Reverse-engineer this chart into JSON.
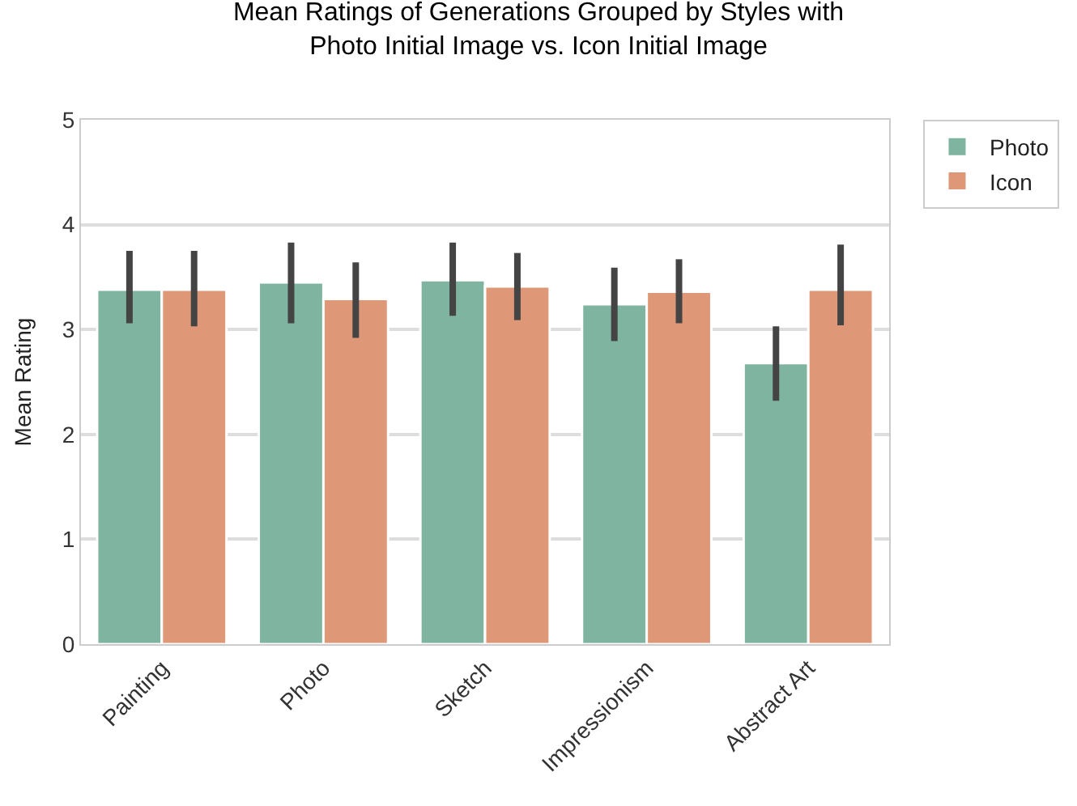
{
  "chart_data": {
    "type": "bar",
    "title": "Mean Ratings of Generations Grouped by Styles with\nPhoto Initial Image vs. Icon Initial Image",
    "ylabel": "Mean Rating",
    "categories": [
      "Painting",
      "Photo",
      "Sketch",
      "Impressionism",
      "Abstract Art"
    ],
    "series": [
      {
        "name": "Photo",
        "color": "#7fb4a1",
        "values": [
          3.38,
          3.45,
          3.47,
          3.24,
          2.68
        ],
        "errors": [
          [
            3.06,
            3.75
          ],
          [
            3.06,
            3.83
          ],
          [
            3.13,
            3.83
          ],
          [
            2.89,
            3.59
          ],
          [
            2.32,
            3.03
          ]
        ]
      },
      {
        "name": "Icon",
        "color": "#df9877",
        "values": [
          3.38,
          3.29,
          3.41,
          3.36,
          3.38
        ],
        "errors": [
          [
            3.03,
            3.75
          ],
          [
            2.92,
            3.64
          ],
          [
            3.09,
            3.73
          ],
          [
            3.06,
            3.67
          ],
          [
            3.04,
            3.81
          ]
        ]
      }
    ],
    "ylim": [
      0,
      5
    ],
    "yticks": [
      0,
      1,
      2,
      3,
      4,
      5
    ],
    "grid": "y",
    "legend": "top right"
  }
}
